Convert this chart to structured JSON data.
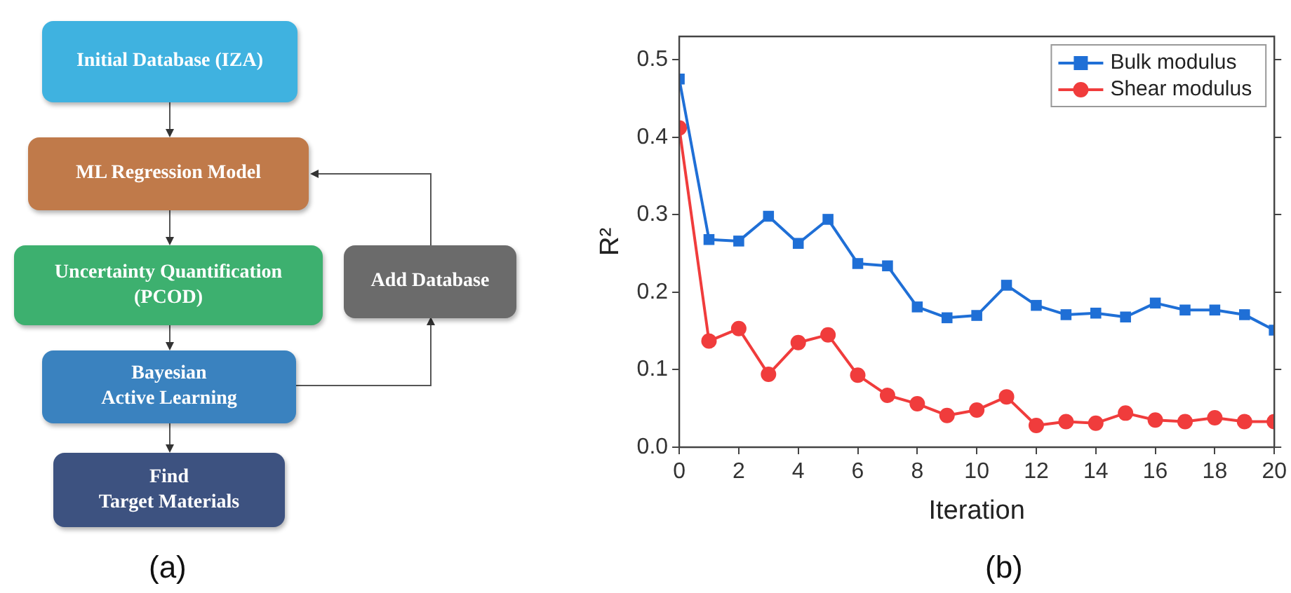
{
  "chart_data": [
    {
      "type": "other",
      "annotations": [
        "Initial Database (IZA)",
        "ML Regression Model",
        "Uncertainty Quantification\n(PCOD)",
        "Add Database",
        "Bayesian\nActive Learning",
        "Find\nTarget Materials",
        "(a)"
      ]
    },
    {
      "type": "line",
      "xlabel": "Iteration",
      "ylabel": "R²",
      "annotations": [
        "(b)"
      ],
      "x": [
        0,
        1,
        2,
        3,
        4,
        5,
        6,
        7,
        8,
        9,
        10,
        11,
        12,
        13,
        14,
        15,
        16,
        17,
        18,
        19,
        20
      ],
      "xlim": [
        0,
        20
      ],
      "xticks": [
        0,
        2,
        4,
        6,
        8,
        10,
        12,
        14,
        16,
        18,
        20
      ],
      "ylim": [
        0,
        0.53
      ],
      "yticks": [
        {
          "value": 0,
          "label": "0.0"
        },
        0.1,
        0.2,
        0.3,
        0.4,
        0.5
      ],
      "grid": false,
      "legend": "top right",
      "line_style": "solid",
      "series": [
        {
          "name": "Bulk modulus",
          "color": "#1f6fd6",
          "marker": "square",
          "values": [
            0.475,
            0.268,
            0.266,
            0.298,
            0.263,
            0.294,
            0.237,
            0.234,
            0.181,
            0.167,
            0.17,
            0.209,
            0.183,
            0.171,
            0.173,
            0.168,
            0.186,
            0.177,
            0.177,
            0.171,
            0.151
          ]
        },
        {
          "name": "Shear modulus",
          "color": "#f03c3c",
          "marker": "circle",
          "values": [
            0.412,
            0.137,
            0.153,
            0.094,
            0.135,
            0.145,
            0.093,
            0.067,
            0.056,
            0.041,
            0.048,
            0.065,
            0.028,
            0.033,
            0.031,
            0.044,
            0.035,
            0.033,
            0.038,
            0.033,
            0.033
          ]
        }
      ]
    }
  ]
}
